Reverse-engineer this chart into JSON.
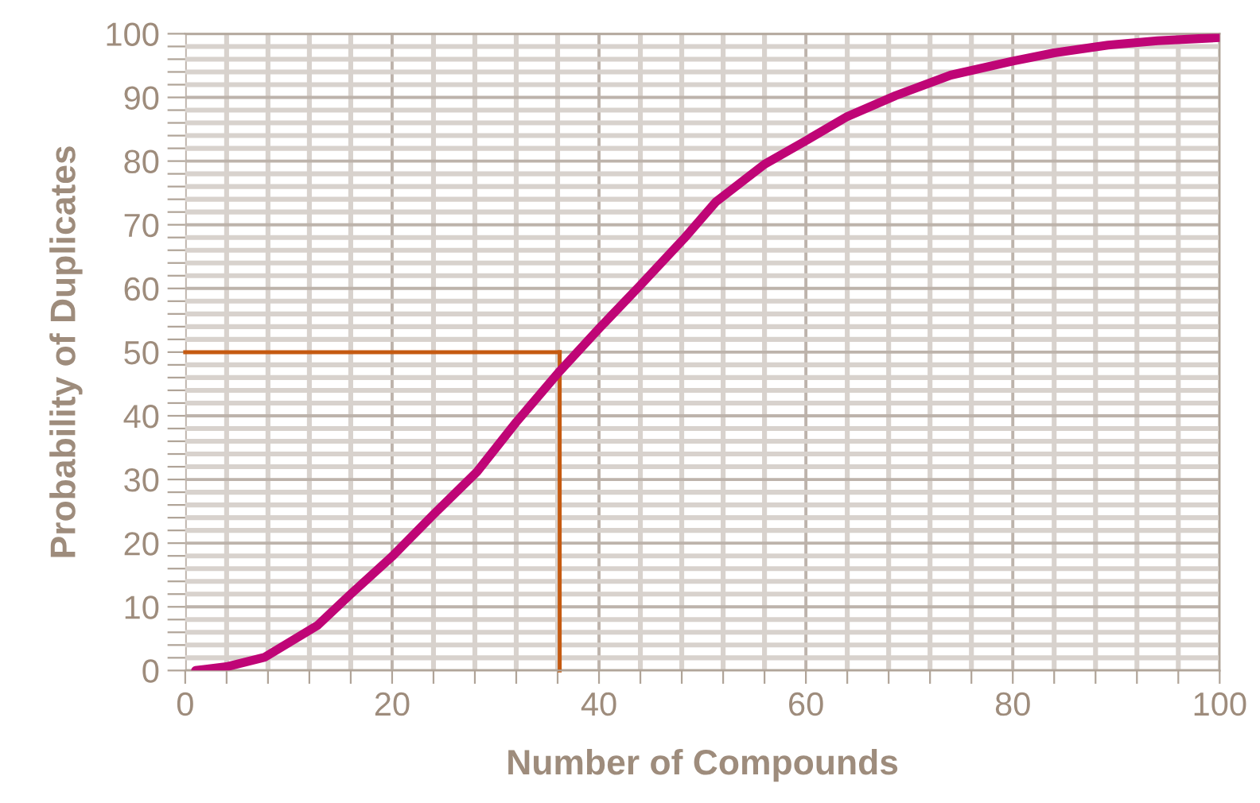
{
  "chart_data": {
    "type": "line",
    "xlabel": "Number of Compounds",
    "ylabel": "Probability of Duplicates",
    "series": [
      {
        "color": "#bf0576",
        "x": [
          1,
          4,
          7.7,
          12.8,
          16,
          20,
          24,
          28.2,
          32,
          36.2,
          40,
          44,
          48.2,
          51.3,
          56,
          60,
          64,
          68.7,
          74,
          80,
          84,
          89.2,
          94,
          100
        ],
        "values": [
          0,
          0.6,
          2.1,
          7.1,
          12,
          17.9,
          24.5,
          31.2,
          39,
          47,
          53.7,
          60.5,
          67.8,
          73.6,
          79.5,
          83.2,
          87,
          90.3,
          93.5,
          95.7,
          97,
          98.2,
          98.9,
          99.4
        ]
      }
    ],
    "ref_lines": [
      {
        "axis": "y",
        "value": 50,
        "color": "#c55a11"
      },
      {
        "axis": "x",
        "value": 36.2,
        "color": "#c55a11"
      }
    ],
    "xlim": [
      0,
      100
    ],
    "ylim": [
      0,
      100
    ],
    "xticks": [
      0,
      {
        "value": 4,
        "label": null
      },
      {
        "value": 8,
        "label": null
      },
      {
        "value": 12,
        "label": null
      },
      {
        "value": 16,
        "label": null
      },
      20,
      {
        "value": 24,
        "label": null
      },
      {
        "value": 28,
        "label": null
      },
      {
        "value": 32,
        "label": null
      },
      {
        "value": 36,
        "label": null
      },
      40,
      {
        "value": 44,
        "label": null
      },
      {
        "value": 48,
        "label": null
      },
      {
        "value": 52,
        "label": null
      },
      {
        "value": 56,
        "label": null
      },
      60,
      {
        "value": 64,
        "label": null
      },
      {
        "value": 68,
        "label": null
      },
      {
        "value": 72,
        "label": null
      },
      {
        "value": 76,
        "label": null
      },
      80,
      {
        "value": 84,
        "label": null
      },
      {
        "value": 88,
        "label": null
      },
      {
        "value": 92,
        "label": null
      },
      {
        "value": 96,
        "label": null
      },
      100
    ],
    "yticks": [
      0,
      {
        "value": 2,
        "label": null
      },
      {
        "value": 4,
        "label": null
      },
      {
        "value": 6,
        "label": null
      },
      {
        "value": 8,
        "label": null
      },
      10,
      {
        "value": 12,
        "label": null
      },
      {
        "value": 14,
        "label": null
      },
      {
        "value": 16,
        "label": null
      },
      {
        "value": 18,
        "label": null
      },
      20,
      {
        "value": 22,
        "label": null
      },
      {
        "value": 24,
        "label": null
      },
      {
        "value": 26,
        "label": null
      },
      {
        "value": 28,
        "label": null
      },
      30,
      {
        "value": 32,
        "label": null
      },
      {
        "value": 34,
        "label": null
      },
      {
        "value": 36,
        "label": null
      },
      {
        "value": 38,
        "label": null
      },
      40,
      {
        "value": 42,
        "label": null
      },
      {
        "value": 44,
        "label": null
      },
      {
        "value": 46,
        "label": null
      },
      {
        "value": 48,
        "label": null
      },
      50,
      {
        "value": 52,
        "label": null
      },
      {
        "value": 54,
        "label": null
      },
      {
        "value": 56,
        "label": null
      },
      {
        "value": 58,
        "label": null
      },
      60,
      {
        "value": 62,
        "label": null
      },
      {
        "value": 64,
        "label": null
      },
      {
        "value": 66,
        "label": null
      },
      {
        "value": 68,
        "label": null
      },
      70,
      {
        "value": 72,
        "label": null
      },
      {
        "value": 74,
        "label": null
      },
      {
        "value": 76,
        "label": null
      },
      {
        "value": 78,
        "label": null
      },
      80,
      {
        "value": 82,
        "label": null
      },
      {
        "value": 84,
        "label": null
      },
      {
        "value": 86,
        "label": null
      },
      {
        "value": 88,
        "label": null
      },
      90,
      {
        "value": 92,
        "label": null
      },
      {
        "value": 94,
        "label": null
      },
      {
        "value": 96,
        "label": null
      },
      {
        "value": 98,
        "label": null
      },
      100
    ],
    "grid": true,
    "marker": "none",
    "line_style": "solid"
  }
}
